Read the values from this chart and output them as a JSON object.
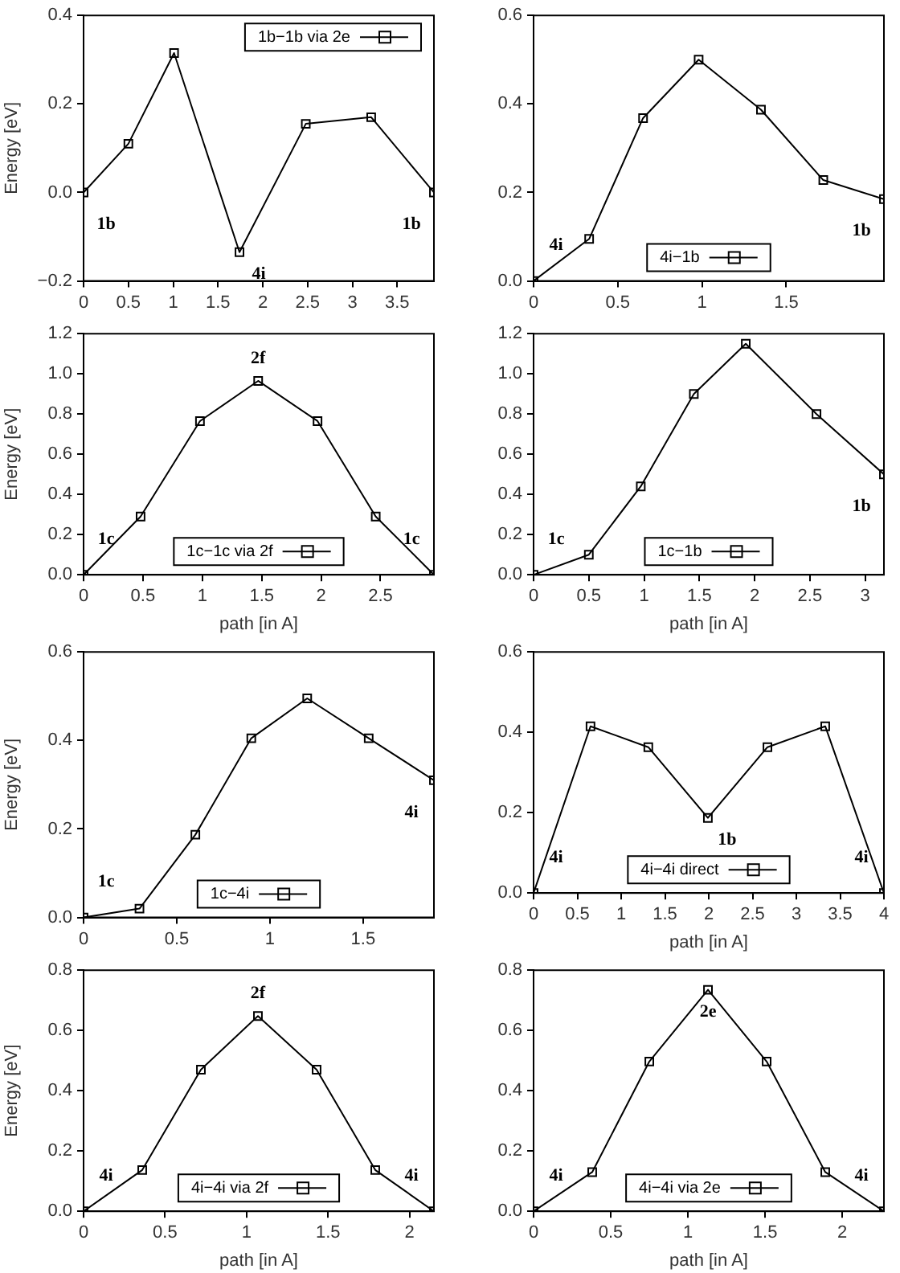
{
  "chart_data": [
    {
      "type": "line",
      "ylabel": "Energy [eV]",
      "x": [
        0,
        0.5,
        1.01,
        1.74,
        2.48,
        3.21,
        3.91
      ],
      "series": [
        {
          "name": "1b−1b via 2e",
          "color": "#000000",
          "values": [
            0,
            0.11,
            0.315,
            -0.135,
            0.155,
            0.17,
            0
          ]
        }
      ],
      "xlim": [
        0,
        3.91
      ],
      "xticks": [
        0,
        0.5,
        1,
        1.5,
        2,
        2.5,
        3,
        3.5
      ],
      "ylim": [
        -0.2,
        0.4
      ],
      "yticks": [
        {
          "value": -0.2,
          "label": "−0.2"
        },
        {
          "value": 0,
          "label": "0.0"
        },
        {
          "value": 0.2,
          "label": "0.2"
        },
        {
          "value": 0.4,
          "label": "0.4"
        }
      ],
      "marker": "square",
      "legend": "top right",
      "grid": false,
      "annotations": [
        {
          "text": "1b",
          "x": 0,
          "y": 0
        },
        {
          "text": "4i",
          "x": 1.74,
          "y": -0.135
        },
        {
          "text": "1b",
          "x": 3.91,
          "y": 0
        }
      ]
    },
    {
      "type": "line",
      "x": [
        0,
        0.33,
        0.65,
        0.98,
        1.35,
        1.72,
        2.08
      ],
      "series": [
        {
          "name": "4i−1b",
          "color": "#000000",
          "values": [
            0,
            0.095,
            0.368,
            0.5,
            0.387,
            0.228,
            0.185
          ]
        }
      ],
      "xlim": [
        0,
        2.08
      ],
      "xticks": [
        0,
        0.5,
        1,
        1.5
      ],
      "ylim": [
        0,
        0.6
      ],
      "yticks": [
        {
          "value": 0,
          "label": "0.0"
        },
        {
          "value": 0.2,
          "label": "0.2"
        },
        {
          "value": 0.4,
          "label": "0.4"
        },
        {
          "value": 0.6,
          "label": "0.6"
        }
      ],
      "marker": "square",
      "legend": "bottom",
      "grid": false,
      "annotations": [
        {
          "text": "4i",
          "x": 0,
          "y": 0
        },
        {
          "text": "1b",
          "x": 2.08,
          "y": 0.185
        }
      ]
    },
    {
      "type": "line",
      "xlabel": "path [in A]",
      "ylabel": "Energy [eV]",
      "x": [
        0,
        0.48,
        0.98,
        1.47,
        1.97,
        2.46,
        2.95
      ],
      "series": [
        {
          "name": "1c−1c via 2f",
          "color": "#000000",
          "values": [
            0,
            0.29,
            0.765,
            0.965,
            0.765,
            0.29,
            0
          ]
        }
      ],
      "xlim": [
        0,
        2.95
      ],
      "xticks": [
        0,
        0.5,
        1,
        1.5,
        2,
        2.5
      ],
      "ylim": [
        0,
        1.2
      ],
      "yticks": [
        {
          "value": 0,
          "label": "0.0"
        },
        {
          "value": 0.2,
          "label": "0.2"
        },
        {
          "value": 0.4,
          "label": "0.4"
        },
        {
          "value": 0.6,
          "label": "0.6"
        },
        {
          "value": 0.8,
          "label": "0.8"
        },
        {
          "value": 1,
          "label": "1.0"
        },
        {
          "value": 1.2,
          "label": "1.2"
        }
      ],
      "marker": "square",
      "legend": "bottom",
      "grid": false,
      "annotations": [
        {
          "text": "1c",
          "x": 0,
          "y": 0
        },
        {
          "text": "2f",
          "x": 1.47,
          "y": 0.965
        },
        {
          "text": "1c",
          "x": 2.95,
          "y": 0
        }
      ]
    },
    {
      "type": "line",
      "xlabel": "path [in A]",
      "x": [
        0,
        0.5,
        0.97,
        1.45,
        1.92,
        2.56,
        3.17
      ],
      "series": [
        {
          "name": "1c−1b",
          "color": "#000000",
          "values": [
            0,
            0.1,
            0.44,
            0.9,
            1.15,
            0.8,
            0.5
          ]
        }
      ],
      "xlim": [
        0,
        3.17
      ],
      "xticks": [
        0,
        0.5,
        1,
        1.5,
        2,
        2.5,
        3
      ],
      "ylim": [
        0,
        1.2
      ],
      "yticks": [
        {
          "value": 0,
          "label": "0.0"
        },
        {
          "value": 0.2,
          "label": "0.2"
        },
        {
          "value": 0.4,
          "label": "0.4"
        },
        {
          "value": 0.6,
          "label": "0.6"
        },
        {
          "value": 0.8,
          "label": "0.8"
        },
        {
          "value": 1,
          "label": "1.0"
        },
        {
          "value": 1.2,
          "label": "1.2"
        }
      ],
      "marker": "square",
      "legend": "bottom",
      "grid": false,
      "annotations": [
        {
          "text": "1c",
          "x": 0,
          "y": 0
        },
        {
          "text": "1b",
          "x": 3.17,
          "y": 0.5
        }
      ]
    },
    {
      "type": "line",
      "ylabel": "Energy [eV]",
      "x": [
        0,
        0.3,
        0.6,
        0.9,
        1.2,
        1.53,
        1.88
      ],
      "series": [
        {
          "name": "1c−4i",
          "color": "#000000",
          "values": [
            0,
            0.02,
            0.187,
            0.405,
            0.495,
            0.405,
            0.31
          ]
        }
      ],
      "xlim": [
        0,
        1.88
      ],
      "xticks": [
        0,
        0.5,
        1,
        1.5
      ],
      "ylim": [
        0,
        0.6
      ],
      "yticks": [
        {
          "value": 0,
          "label": "0.0"
        },
        {
          "value": 0.2,
          "label": "0.2"
        },
        {
          "value": 0.4,
          "label": "0.4"
        },
        {
          "value": 0.6,
          "label": "0.6"
        }
      ],
      "marker": "square",
      "legend": "bottom",
      "grid": false,
      "annotations": [
        {
          "text": "1c",
          "x": 0,
          "y": 0
        },
        {
          "text": "4i",
          "x": 1.88,
          "y": 0.31
        }
      ]
    },
    {
      "type": "line",
      "xlabel": "path [in A]",
      "x": [
        0,
        0.65,
        1.31,
        1.99,
        2.67,
        3.33,
        4
      ],
      "series": [
        {
          "name": "4i−4i direct",
          "color": "#000000",
          "values": [
            0,
            0.415,
            0.363,
            0.187,
            0.363,
            0.415,
            0
          ]
        }
      ],
      "xlim": [
        0,
        4
      ],
      "xticks": [
        0,
        0.5,
        1,
        1.5,
        2,
        2.5,
        3,
        3.5,
        4
      ],
      "ylim": [
        0,
        0.6
      ],
      "yticks": [
        {
          "value": 0,
          "label": "0.0"
        },
        {
          "value": 0.2,
          "label": "0.2"
        },
        {
          "value": 0.4,
          "label": "0.4"
        },
        {
          "value": 0.6,
          "label": "0.6"
        }
      ],
      "marker": "square",
      "legend": "bottom",
      "grid": false,
      "annotations": [
        {
          "text": "4i",
          "x": 0,
          "y": 0
        },
        {
          "text": "1b",
          "x": 1.99,
          "y": 0.187
        },
        {
          "text": "4i",
          "x": 4,
          "y": 0
        }
      ]
    },
    {
      "type": "line",
      "xlabel": "path [in A]",
      "ylabel": "Energy [eV]",
      "x": [
        0,
        0.36,
        0.72,
        1.07,
        1.43,
        1.79,
        2.15
      ],
      "series": [
        {
          "name": "4i−4i via 2f",
          "color": "#000000",
          "values": [
            0,
            0.137,
            0.47,
            0.648,
            0.47,
            0.137,
            0
          ]
        }
      ],
      "xlim": [
        0,
        2.15
      ],
      "xticks": [
        0,
        0.5,
        1,
        1.5,
        2
      ],
      "ylim": [
        0,
        0.8
      ],
      "yticks": [
        {
          "value": 0,
          "label": "0.0"
        },
        {
          "value": 0.2,
          "label": "0.2"
        },
        {
          "value": 0.4,
          "label": "0.4"
        },
        {
          "value": 0.6,
          "label": "0.6"
        },
        {
          "value": 0.8,
          "label": "0.8"
        }
      ],
      "marker": "square",
      "legend": "bottom",
      "grid": false,
      "annotations": [
        {
          "text": "4i",
          "x": 0,
          "y": 0
        },
        {
          "text": "2f",
          "x": 1.07,
          "y": 0.648
        },
        {
          "text": "4i",
          "x": 2.15,
          "y": 0
        }
      ]
    },
    {
      "type": "line",
      "xlabel": "path [in A]",
      "x": [
        0,
        0.38,
        0.75,
        1.13,
        1.51,
        1.89,
        2.27
      ],
      "series": [
        {
          "name": "4i−4i via 2e",
          "color": "#000000",
          "values": [
            0,
            0.13,
            0.497,
            0.735,
            0.497,
            0.13,
            0
          ]
        }
      ],
      "xlim": [
        0,
        2.27
      ],
      "xticks": [
        0,
        0.5,
        1,
        1.5,
        2
      ],
      "ylim": [
        0,
        0.8
      ],
      "yticks": [
        {
          "value": 0,
          "label": "0.0"
        },
        {
          "value": 0.2,
          "label": "0.2"
        },
        {
          "value": 0.4,
          "label": "0.4"
        },
        {
          "value": 0.6,
          "label": "0.6"
        },
        {
          "value": 0.8,
          "label": "0.8"
        }
      ],
      "marker": "square",
      "legend": "bottom",
      "grid": false,
      "annotations": [
        {
          "text": "4i",
          "x": 0,
          "y": 0
        },
        {
          "text": "2e",
          "x": 1.13,
          "y": 0.735
        },
        {
          "text": "4i",
          "x": 2.27,
          "y": 0
        }
      ]
    }
  ]
}
